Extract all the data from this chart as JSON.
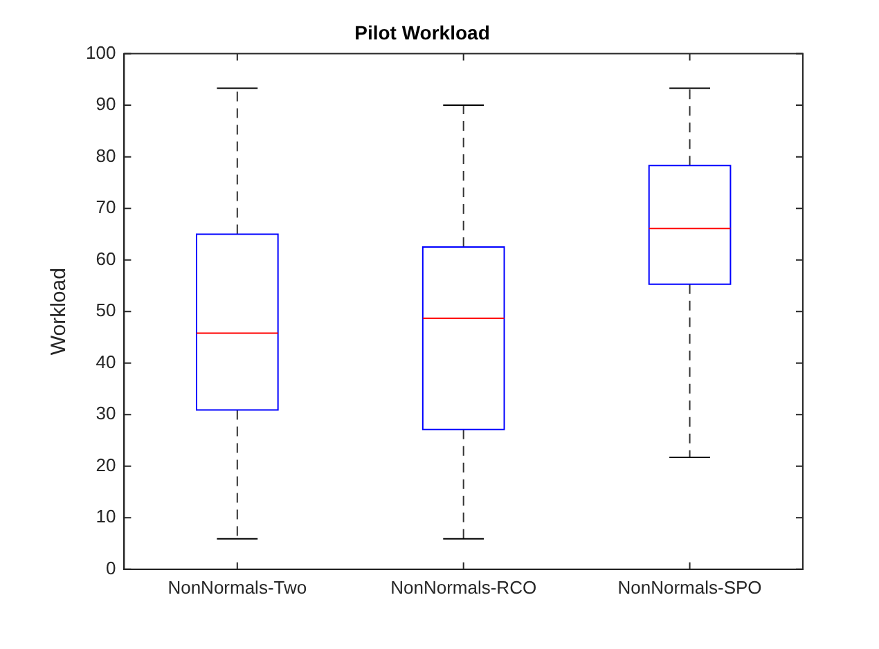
{
  "chart_data": {
    "type": "box",
    "title": "Pilot Workload",
    "ylabel": "Workload",
    "categories": [
      "NonNormals-Two",
      "NonNormals-RCO",
      "NonNormals-SPO"
    ],
    "series": [
      {
        "color": "#0000ff",
        "boxes": [
          {
            "low": 5.9,
            "q1": 30.9,
            "median": 45.8,
            "q3": 65.0,
            "high": 93.3
          },
          {
            "low": 5.9,
            "q1": 27.1,
            "median": 48.7,
            "q3": 62.5,
            "high": 90.0
          },
          {
            "low": 21.7,
            "q1": 55.3,
            "median": 66.1,
            "q3": 78.3,
            "high": 93.3
          }
        ]
      }
    ],
    "ylim": [
      0,
      100
    ],
    "yticks": [
      0,
      10,
      20,
      30,
      40,
      50,
      60,
      70,
      80,
      90,
      100
    ],
    "grid": false,
    "legend": false
  }
}
